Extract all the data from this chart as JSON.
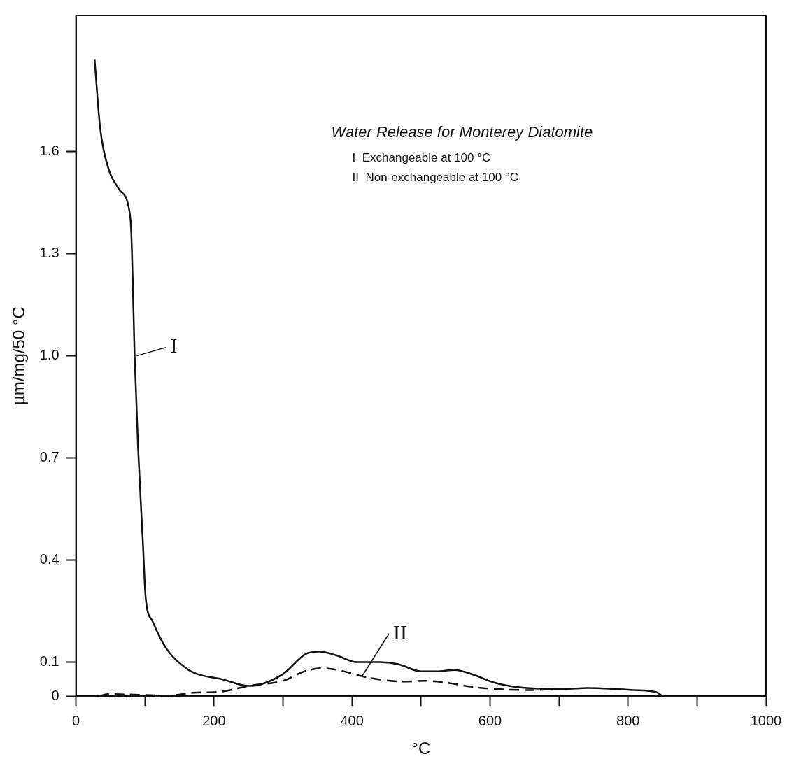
{
  "chart_data": {
    "type": "line",
    "title": "Water Release for Monterey Diatomite",
    "xlabel": "°C",
    "ylabel": "µm/mg/50 °C",
    "xlim": [
      0,
      1000
    ],
    "ylim": [
      0,
      2
    ],
    "xticks": [
      0,
      {
        "value": 100,
        "label": null
      },
      200,
      {
        "value": 300,
        "label": null
      },
      400,
      {
        "value": 500,
        "label": null
      },
      600,
      {
        "value": 700,
        "label": null
      },
      800,
      {
        "value": 900,
        "label": null
      },
      1000
    ],
    "yticks": [
      0,
      0.1,
      0.4,
      0.7,
      {
        "value": 1,
        "label": "1.0"
      },
      1.3,
      1.6
    ],
    "grid": false,
    "legend": false,
    "marker": "none",
    "series": [
      {
        "color": "#111111",
        "line_style": "solid",
        "x": [
          27,
          35,
          47,
          62,
          77,
          80,
          82,
          85,
          90,
          97,
          101,
          111,
          131,
          161,
          176,
          211,
          251,
          300,
          333,
          353,
          377,
          407,
          440,
          467,
          500,
          522,
          549,
          576,
          606,
          642,
          708,
          741,
          808,
          841,
          850
        ],
        "values": [
          1.87,
          1.67,
          1.55,
          1.49,
          1.43,
          1.37,
          1.24,
          1.0,
          0.73,
          0.45,
          0.29,
          0.22,
          0.14,
          0.08,
          0.065,
          0.05,
          0.03,
          0.065,
          0.124,
          0.131,
          0.12,
          0.1,
          0.1,
          0.094,
          0.073,
          0.073,
          0.077,
          0.063,
          0.04,
          0.026,
          0.021,
          0.024,
          0.018,
          0.012,
          0
        ]
      },
      {
        "color": "#111111",
        "line_style": "dashed",
        "x": [
          34,
          46,
          134,
          170,
          212,
          252,
          300,
          330,
          357,
          377,
          423,
          473,
          506,
          539,
          572,
          609,
          659,
          690
        ],
        "values": [
          0,
          0.006,
          0.002,
          0.01,
          0.014,
          0.031,
          0.045,
          0.072,
          0.082,
          0.078,
          0.055,
          0.043,
          0.045,
          0.039,
          0.028,
          0.021,
          0.018,
          0.02
        ]
      }
    ],
    "annotations": [
      "I  Exchangeable at 100 °C",
      "II  Non-exchangeable at 100 °C",
      {
        "text": "I",
        "x": 88,
        "y": 1.0
      },
      {
        "text": "II",
        "x": 415,
        "y": 0.06
      }
    ]
  }
}
